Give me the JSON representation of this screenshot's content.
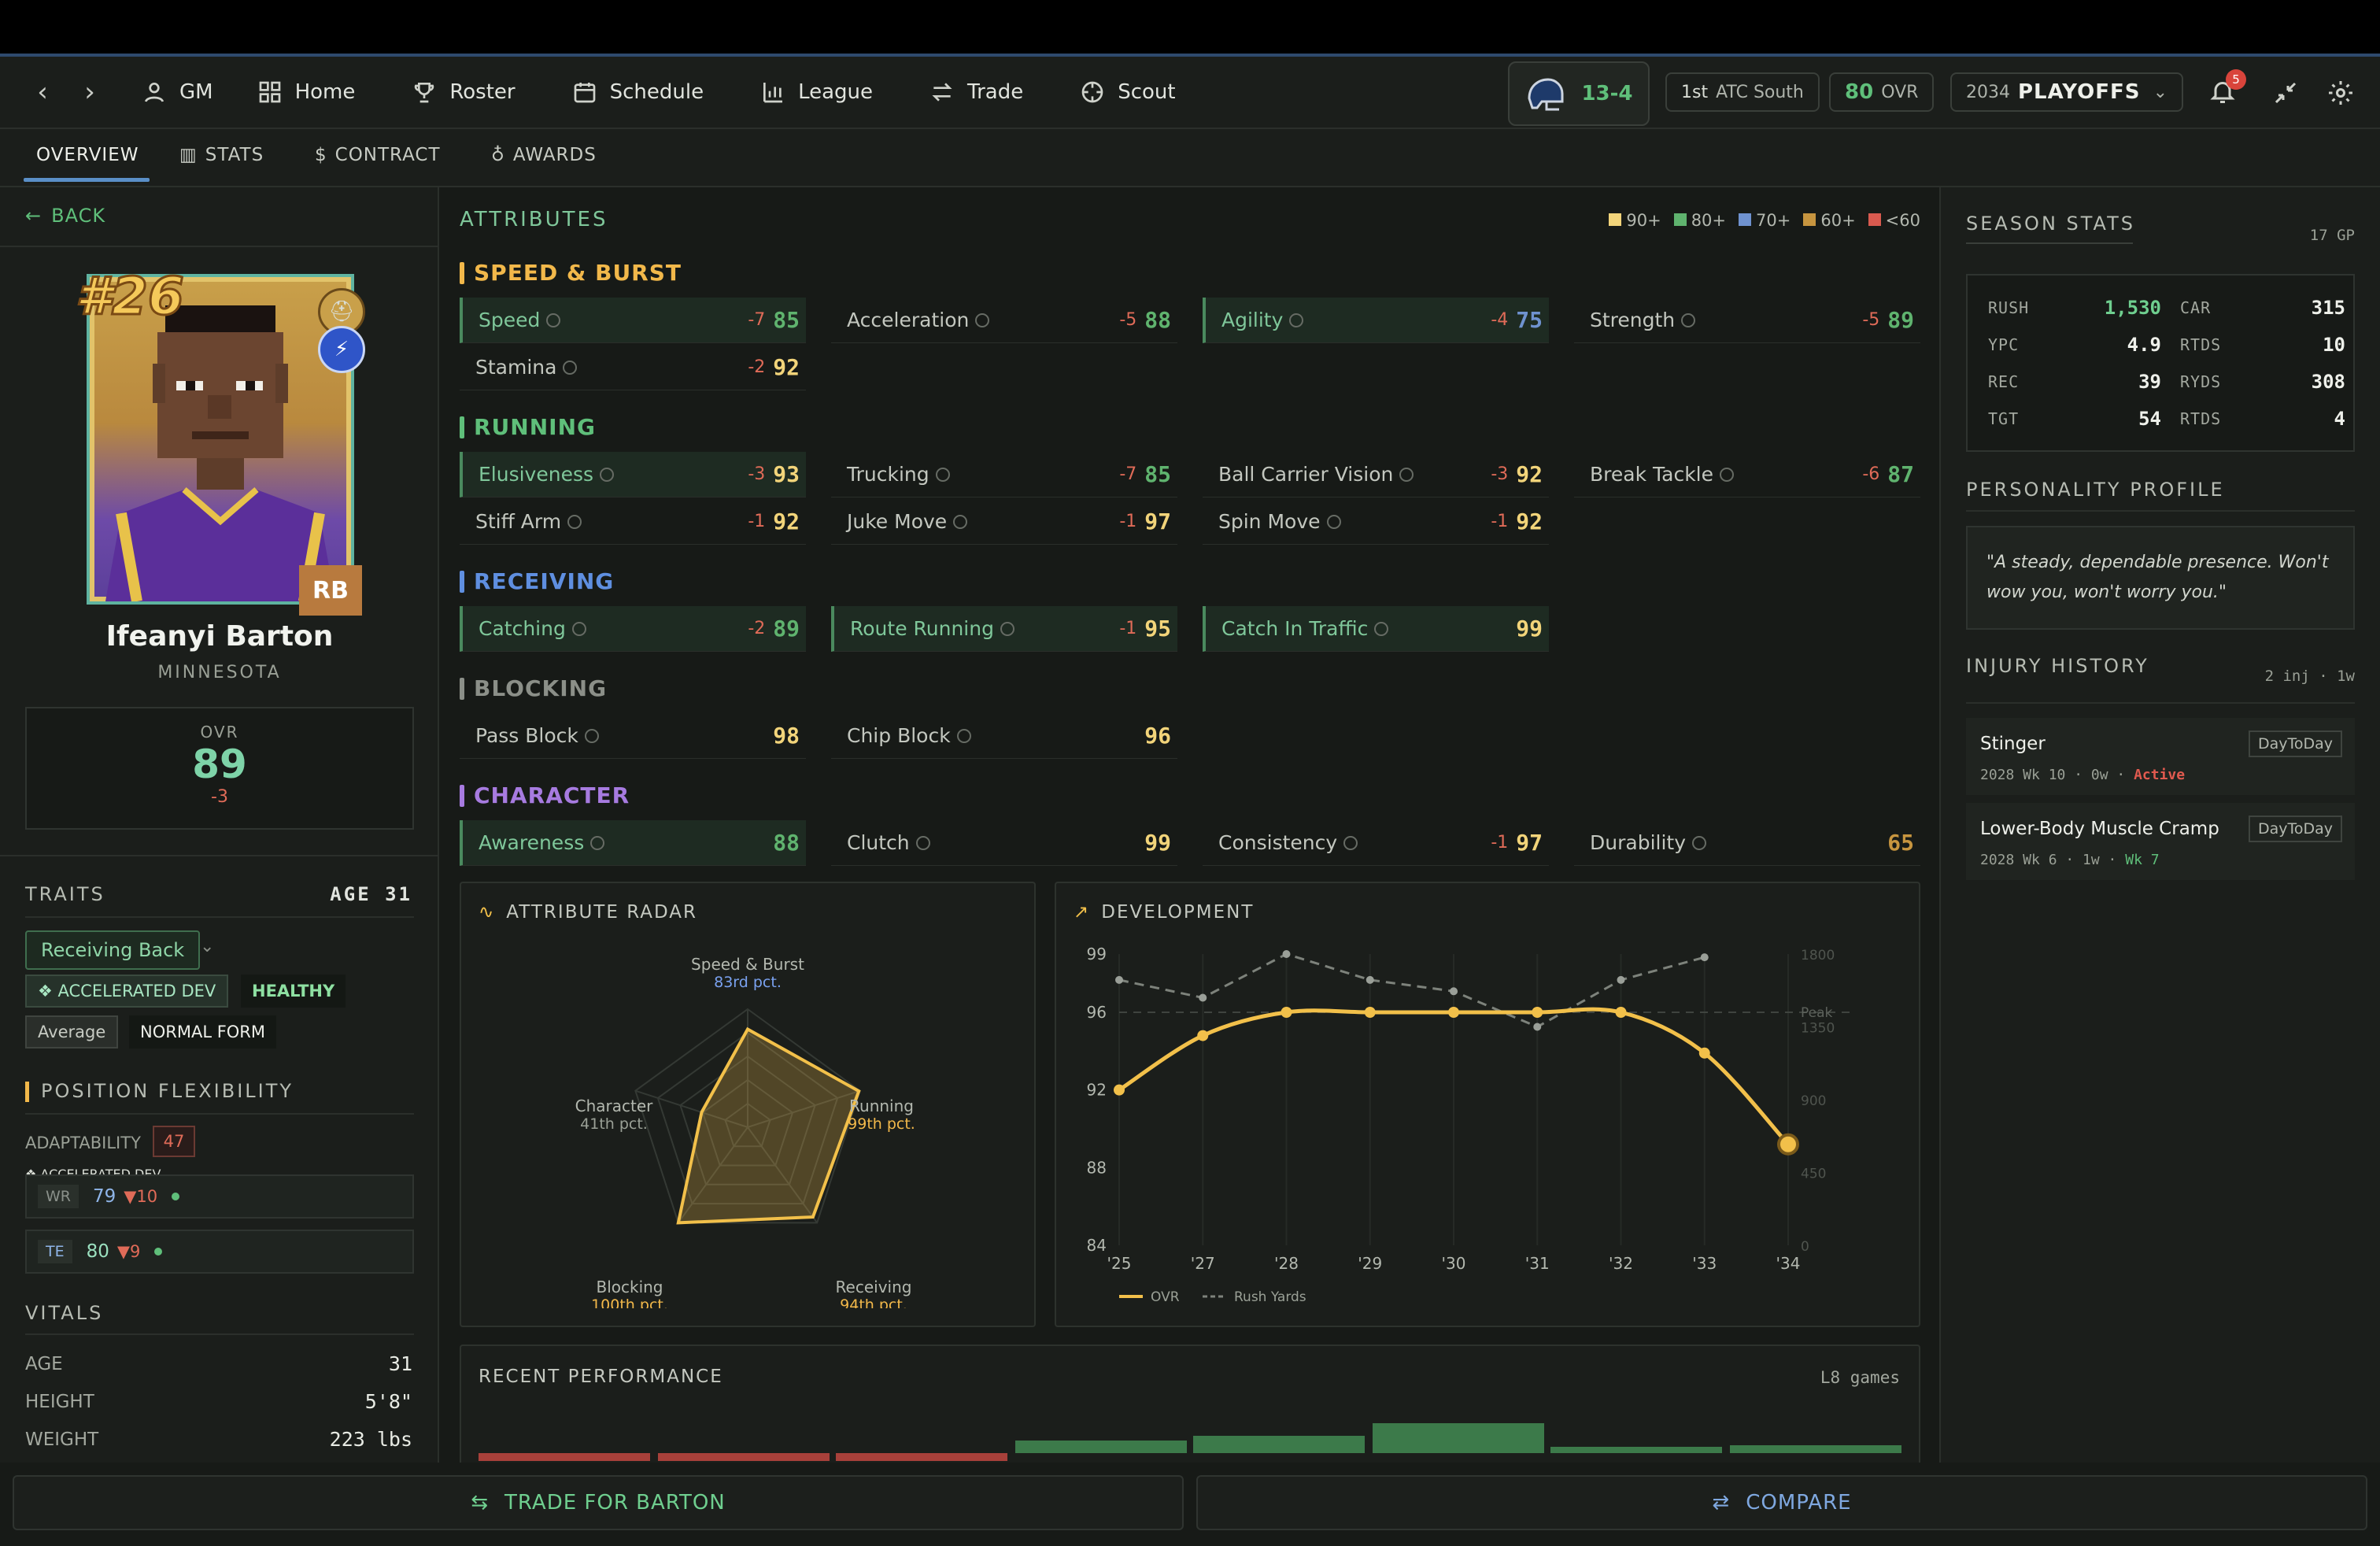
{
  "nav": {
    "gm": "GM",
    "items": [
      "Home",
      "Roster",
      "Schedule",
      "League",
      "Trade",
      "Scout"
    ],
    "record": "13-4",
    "standing_rank": "1st",
    "standing_div": "ATC South",
    "ovr_value": "80",
    "ovr_label": "OVR",
    "season_year": "2034",
    "season_phase": "PLAYOFFS",
    "notification_count": "5"
  },
  "tabs": [
    "OVERVIEW",
    "STATS",
    "CONTRACT",
    "AWARDS"
  ],
  "player": {
    "back": "BACK",
    "number": "#26",
    "position": "RB",
    "name": "Ifeanyi Barton",
    "team": "MINNESOTA",
    "ovr_label": "OVR",
    "ovr": "89",
    "ovr_delta": "-3"
  },
  "traits": {
    "title": "TRAITS",
    "age": "AGE 31",
    "archetype": "Receiving Back",
    "badges": [
      "❖ ACCELERATED DEV",
      "HEALTHY",
      "Average",
      "NORMAL FORM"
    ]
  },
  "flex": {
    "title": "POSITION FLEXIBILITY",
    "adaptability_label": "ADAPTABILITY",
    "adaptability_value": "47",
    "rows": [
      {
        "pos": "WR",
        "rating": "79",
        "drop": "▼10"
      },
      {
        "pos": "TE",
        "rating": "80",
        "drop": "▼9"
      }
    ]
  },
  "vitals": {
    "title": "VITALS",
    "rows": [
      {
        "k": "AGE",
        "v": "31"
      },
      {
        "k": "HEIGHT",
        "v": "5'8\""
      },
      {
        "k": "WEIGHT",
        "v": "223 lbs"
      }
    ]
  },
  "attributes": {
    "title": "ATTRIBUTES",
    "legend": [
      "90+",
      "80+",
      "70+",
      "60+",
      "<60"
    ],
    "legend_colors": [
      "#f2d47a",
      "#5fb36e",
      "#6f92cf",
      "#c7953f",
      "#d95a4f"
    ],
    "groups": [
      {
        "name": "SPEED & BURST",
        "color": "#f2b84a",
        "rows": [
          [
            {
              "n": "Speed",
              "d": "-7",
              "v": "85",
              "hl": true
            },
            {
              "n": "Acceleration",
              "d": "-5",
              "v": "88"
            },
            {
              "n": "Agility",
              "d": "-4",
              "v": "75",
              "hl": true
            },
            {
              "n": "Strength",
              "d": "-5",
              "v": "89"
            }
          ],
          [
            {
              "n": "Stamina",
              "d": "-2",
              "v": "92"
            }
          ]
        ]
      },
      {
        "name": "RUNNING",
        "color": "#5fbf7a",
        "rows": [
          [
            {
              "n": "Elusiveness",
              "d": "-3",
              "v": "93",
              "hl": true
            },
            {
              "n": "Trucking",
              "d": "-7",
              "v": "85"
            },
            {
              "n": "Ball Carrier Vision",
              "d": "-3",
              "v": "92"
            },
            {
              "n": "Break Tackle",
              "d": "-6",
              "v": "87"
            }
          ],
          [
            {
              "n": "Stiff Arm",
              "d": "-1",
              "v": "92"
            },
            {
              "n": "Juke Move",
              "d": "-1",
              "v": "97"
            },
            {
              "n": "Spin Move",
              "d": "-1",
              "v": "92"
            }
          ]
        ]
      },
      {
        "name": "RECEIVING",
        "color": "#5f8fe0",
        "rows": [
          [
            {
              "n": "Catching",
              "d": "-2",
              "v": "89",
              "hl": true
            },
            {
              "n": "Route Running",
              "d": "-1",
              "v": "95",
              "hl": true
            },
            {
              "n": "Catch In Traffic",
              "d": "",
              "v": "99",
              "hl": true
            }
          ]
        ]
      },
      {
        "name": "BLOCKING",
        "color": "#8b8f88",
        "rows": [
          [
            {
              "n": "Pass Block",
              "d": "",
              "v": "98"
            },
            {
              "n": "Chip Block",
              "d": "",
              "v": "96"
            }
          ]
        ]
      },
      {
        "name": "CHARACTER",
        "color": "#a77be0",
        "rows": [
          [
            {
              "n": "Awareness",
              "d": "",
              "v": "88",
              "hl": true
            },
            {
              "n": "Clutch",
              "d": "",
              "v": "99"
            },
            {
              "n": "Consistency",
              "d": "-1",
              "v": "97"
            },
            {
              "n": "Durability",
              "d": "",
              "v": "65"
            }
          ]
        ]
      }
    ]
  },
  "radar": {
    "title": "ATTRIBUTE RADAR",
    "axes": [
      {
        "label": "Speed & Burst",
        "pct": "83rd pct.",
        "value": 0.83
      },
      {
        "label": "Running",
        "pct": "99th pct.",
        "value": 0.99
      },
      {
        "label": "Receiving",
        "pct": "94th pct.",
        "value": 0.94
      },
      {
        "label": "Blocking",
        "pct": "100th pct.",
        "value": 1.0
      },
      {
        "label": "Character",
        "pct": "41th pct.",
        "value": 0.41
      }
    ]
  },
  "chart_data": {
    "type": "line",
    "title": "DEVELOPMENT",
    "x": [
      "'25",
      "'27",
      "'28",
      "'29",
      "'30",
      "'31",
      "'32",
      "'33",
      "'34"
    ],
    "ylim": [
      84,
      99
    ],
    "yticks": [
      "99",
      "96",
      "92",
      "88",
      "84"
    ],
    "y2ticks": [
      "1800",
      "1350",
      "900",
      "450",
      "0"
    ],
    "y2lim": [
      0,
      1800
    ],
    "peak_label": "Peak",
    "peak_value": 96,
    "series": [
      {
        "name": "OVR",
        "values": [
          92,
          94.8,
          96,
          96,
          96,
          96,
          96,
          93.9,
          89.2
        ]
      },
      {
        "name": "Rush Yards",
        "values": [
          1640,
          1530,
          1800,
          1640,
          1570,
          1350,
          1640,
          1780,
          null
        ]
      }
    ]
  },
  "recent": {
    "title": "RECENT PERFORMANCE",
    "subtitle": "L8 games"
  },
  "season": {
    "title": "SEASON STATS",
    "gp": "17 GP",
    "rows": [
      {
        "k1": "RUSH",
        "v1": "1,530",
        "k2": "CAR",
        "v2": "315"
      },
      {
        "k1": "YPC",
        "v1": "4.9",
        "k2": "RTDS",
        "v2": "10"
      },
      {
        "k1": "REC",
        "v1": "39",
        "k2": "RYDS",
        "v2": "308"
      },
      {
        "k1": "TGT",
        "v1": "54",
        "k2": "RTDS",
        "v2": "4"
      }
    ]
  },
  "personality": {
    "title": "PERSONALITY PROFILE",
    "quote": "\"A steady, dependable presence. Won't wow you, won't worry you.\""
  },
  "injury": {
    "title": "INJURY HISTORY",
    "summary": "2 inj · 1w",
    "items": [
      {
        "name": "Stinger",
        "tag": "DayToDay",
        "meta": "2028 Wk 10 · 0w ·",
        "status": "Active"
      },
      {
        "name": "Lower-Body Muscle Cramp",
        "tag": "DayToDay",
        "meta": "2028 Wk 6 · 1w ·",
        "status": "Wk 7"
      }
    ]
  },
  "actions": {
    "trade": "TRADE FOR BARTON",
    "compare": "COMPARE"
  }
}
